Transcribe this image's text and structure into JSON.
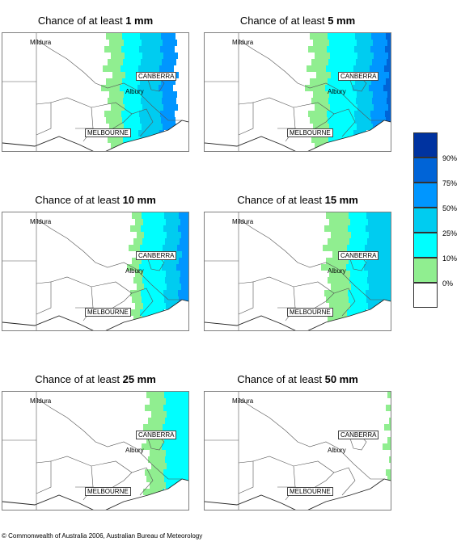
{
  "colors": {
    "c10": "#90ee90",
    "c25": "#00ffff",
    "c50": "#00ccf0",
    "c75": "#0096ff",
    "c90": "#0064d7",
    "c100": "#0033a0"
  },
  "panels": [
    {
      "prefix": "Chance of at least ",
      "amount": "1 mm",
      "level": 5
    },
    {
      "prefix": "Chance of at least ",
      "amount": "5 mm",
      "level": 4
    },
    {
      "prefix": "Chance of at least ",
      "amount": "10 mm",
      "level": 3
    },
    {
      "prefix": "Chance of at least ",
      "amount": "15 mm",
      "level": 2
    },
    {
      "prefix": "Chance of at least ",
      "amount": "25 mm",
      "level": 1
    },
    {
      "prefix": "Chance of at least ",
      "amount": "50 mm",
      "level": 0
    }
  ],
  "places": {
    "mildura": "Mildura",
    "canberra": "CANBERRA",
    "albury": "Albury",
    "melbourne": "MELBOURNE"
  },
  "legend": {
    "ticks": [
      "90%",
      "75%",
      "50%",
      "25%",
      "10%",
      "0%"
    ]
  },
  "footer": "© Commonwealth of Australia 2006, Australian Bureau of Meteorology"
}
